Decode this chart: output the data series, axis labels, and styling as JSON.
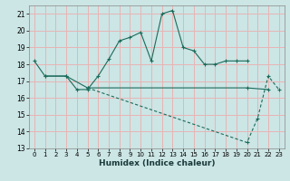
{
  "title": "",
  "xlabel": "Humidex (Indice chaleur)",
  "bg_color": "#cce5e5",
  "grid_color": "#e8b4b4",
  "line_color": "#1a6b5a",
  "xlim": [
    -0.5,
    23.5
  ],
  "ylim": [
    13,
    21.5
  ],
  "yticks": [
    13,
    14,
    15,
    16,
    17,
    18,
    19,
    20,
    21
  ],
  "xticks": [
    0,
    1,
    2,
    3,
    4,
    5,
    6,
    7,
    8,
    9,
    10,
    11,
    12,
    13,
    14,
    15,
    16,
    17,
    18,
    19,
    20,
    21,
    22,
    23
  ],
  "line1_x": [
    0,
    1,
    3,
    4,
    5,
    6,
    7,
    8,
    9,
    10,
    11,
    12,
    13,
    14,
    15,
    16,
    17,
    18,
    19,
    20
  ],
  "line1_y": [
    18.2,
    17.3,
    17.3,
    16.5,
    16.5,
    17.3,
    18.3,
    19.4,
    19.6,
    19.9,
    18.2,
    21.0,
    21.2,
    19.0,
    18.8,
    18.0,
    18.0,
    18.2,
    18.2,
    18.2
  ],
  "line2_x": [
    1,
    3,
    5,
    20,
    22
  ],
  "line2_y": [
    17.3,
    17.3,
    16.6,
    16.6,
    16.5
  ],
  "line3_x": [
    5,
    20,
    21,
    22,
    23
  ],
  "line3_y": [
    16.6,
    13.35,
    14.8,
    17.3,
    16.5
  ]
}
